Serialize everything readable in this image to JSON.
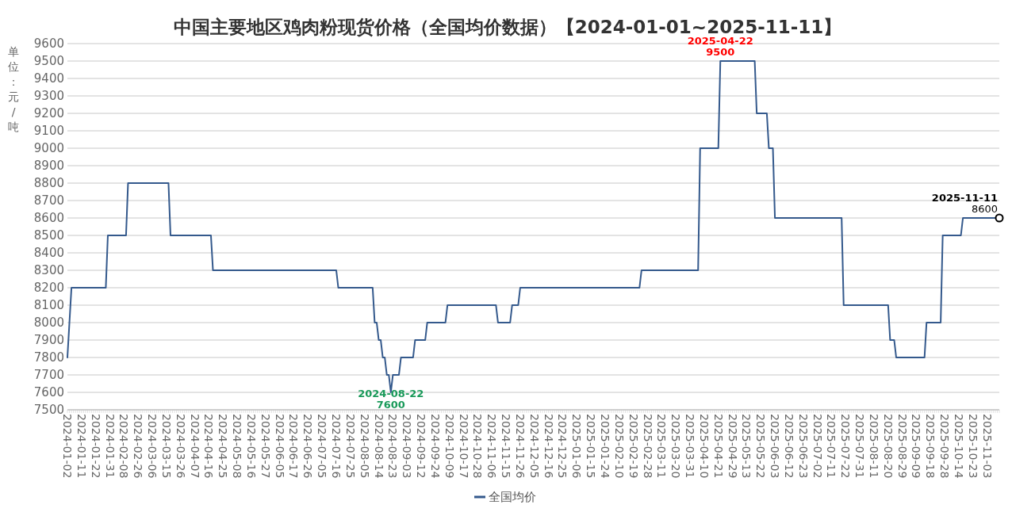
{
  "chart_data": {
    "type": "line",
    "title": "中国主要地区鸡肉粉现货价格（全国均价数据）【2024-01-01~2025-11-11】",
    "ylabel": "单位：元/吨",
    "categories": [
      "2024-01-02",
      null,
      null,
      null,
      null,
      null,
      null,
      "2024-01-11",
      null,
      null,
      null,
      null,
      null,
      null,
      "2024-01-22",
      null,
      null,
      null,
      null,
      null,
      null,
      "2024-01-31",
      null,
      null,
      null,
      null,
      null,
      null,
      "2024-02-08",
      null,
      null,
      null,
      null,
      null,
      null,
      "2024-02-26",
      null,
      null,
      null,
      null,
      null,
      null,
      "2024-03-06",
      null,
      null,
      null,
      null,
      null,
      null,
      "2024-03-15",
      null,
      null,
      null,
      null,
      null,
      null,
      "2024-03-26",
      null,
      null,
      null,
      null,
      null,
      null,
      "2024-04-07",
      null,
      null,
      null,
      null,
      null,
      null,
      "2024-04-16",
      null,
      null,
      null,
      null,
      null,
      null,
      "2024-04-25",
      null,
      null,
      null,
      null,
      null,
      null,
      "2024-05-08",
      null,
      null,
      null,
      null,
      null,
      null,
      "2024-05-16",
      null,
      null,
      null,
      null,
      null,
      null,
      "2024-05-27",
      null,
      null,
      null,
      null,
      null,
      null,
      "2024-06-05",
      null,
      null,
      null,
      null,
      null,
      null,
      "2024-06-17",
      null,
      null,
      null,
      null,
      null,
      null,
      "2024-06-26",
      null,
      null,
      null,
      null,
      null,
      null,
      "2024-07-05",
      null,
      null,
      null,
      null,
      null,
      null,
      "2024-07-16",
      null,
      null,
      null,
      null,
      null,
      null,
      "2024-07-25",
      null,
      null,
      null,
      null,
      null,
      null,
      "2024-08-05",
      null,
      null,
      null,
      null,
      null,
      null,
      "2024-08-14",
      null,
      null,
      null,
      null,
      null,
      null,
      "2024-08-23",
      null,
      null,
      null,
      null,
      null,
      null,
      "2024-09-03",
      null,
      null,
      null,
      null,
      null,
      null,
      "2024-09-12",
      null,
      null,
      null,
      null,
      null,
      null,
      "2024-09-24",
      null,
      null,
      null,
      null,
      null,
      null,
      "2024-10-09",
      null,
      null,
      null,
      null,
      null,
      null,
      "2024-10-17",
      null,
      null,
      null,
      null,
      null,
      null,
      "2024-10-28",
      null,
      null,
      null,
      null,
      null,
      null,
      "2024-11-06",
      null,
      null,
      null,
      null,
      null,
      null,
      "2024-11-15",
      null,
      null,
      null,
      null,
      null,
      null,
      "2024-11-26",
      null,
      null,
      null,
      null,
      null,
      null,
      "2024-12-05",
      null,
      null,
      null,
      null,
      null,
      null,
      "2024-12-16",
      null,
      null,
      null,
      null,
      null,
      null,
      "2024-12-25",
      null,
      null,
      null,
      null,
      null,
      null,
      "2025-01-06",
      null,
      null,
      null,
      null,
      null,
      null,
      "2025-01-15",
      null,
      null,
      null,
      null,
      null,
      null,
      "2025-01-24",
      null,
      null,
      null,
      null,
      null,
      null,
      "2025-02-10",
      null,
      null,
      null,
      null,
      null,
      null,
      "2025-02-19",
      null,
      null,
      null,
      null,
      null,
      null,
      "2025-02-28",
      null,
      null,
      null,
      null,
      null,
      null,
      "2025-03-11",
      null,
      null,
      null,
      null,
      null,
      null,
      "2025-03-20",
      null,
      null,
      null,
      null,
      null,
      null,
      "2025-03-31",
      null,
      null,
      null,
      null,
      null,
      null,
      "2025-04-10",
      null,
      null,
      null,
      null,
      null,
      null,
      "2025-04-21",
      null,
      null,
      null,
      null,
      null,
      null,
      "2025-04-29",
      null,
      null,
      null,
      null,
      null,
      null,
      "2025-05-13",
      null,
      null,
      null,
      null,
      null,
      null,
      "2025-05-22",
      null,
      null,
      null,
      null,
      null,
      null,
      "2025-06-03",
      null,
      null,
      null,
      null,
      null,
      null,
      "2025-06-12",
      null,
      null,
      null,
      null,
      null,
      null,
      "2025-06-23",
      null,
      null,
      null,
      null,
      null,
      null,
      "2025-07-02",
      null,
      null,
      null,
      null,
      null,
      null,
      "2025-07-11",
      null,
      null,
      null,
      null,
      null,
      null,
      "2025-07-22",
      null,
      null,
      null,
      null,
      null,
      null,
      "2025-07-31",
      null,
      null,
      null,
      null,
      null,
      null,
      "2025-08-11",
      null,
      null,
      null,
      null,
      null,
      null,
      "2025-08-20",
      null,
      null,
      null,
      null,
      null,
      null,
      "2025-08-29",
      null,
      null,
      null,
      null,
      null,
      null,
      "2025-09-09",
      null,
      null,
      null,
      null,
      null,
      null,
      "2025-09-18",
      null,
      null,
      null,
      null,
      null,
      null,
      "2025-09-28",
      null,
      null,
      null,
      null,
      null,
      null,
      "2025-10-14",
      null,
      null,
      null,
      null,
      null,
      null,
      "2025-10-23",
      null,
      null,
      null,
      null,
      null,
      null,
      "2025-11-03",
      null,
      null,
      null,
      null,
      null,
      null
    ],
    "series": [
      {
        "name": "全国均价",
        "color": "#34598c",
        "values": [
          7800,
          8000,
          8200,
          8200,
          8200,
          8200,
          8200,
          8200,
          8200,
          8200,
          8200,
          8200,
          8200,
          8200,
          8200,
          8200,
          8200,
          8200,
          8200,
          8200,
          8500,
          8500,
          8500,
          8500,
          8500,
          8500,
          8500,
          8500,
          8500,
          8500,
          8800,
          8800,
          8800,
          8800,
          8800,
          8800,
          8800,
          8800,
          8800,
          8800,
          8800,
          8800,
          8800,
          8800,
          8800,
          8800,
          8800,
          8800,
          8800,
          8800,
          8800,
          8500,
          8500,
          8500,
          8500,
          8500,
          8500,
          8500,
          8500,
          8500,
          8500,
          8500,
          8500,
          8500,
          8500,
          8500,
          8500,
          8500,
          8500,
          8500,
          8500,
          8500,
          8300,
          8300,
          8300,
          8300,
          8300,
          8300,
          8300,
          8300,
          8300,
          8300,
          8300,
          8300,
          8300,
          8300,
          8300,
          8300,
          8300,
          8300,
          8300,
          8300,
          8300,
          8300,
          8300,
          8300,
          8300,
          8300,
          8300,
          8300,
          8300,
          8300,
          8300,
          8300,
          8300,
          8300,
          8300,
          8300,
          8300,
          8300,
          8300,
          8300,
          8300,
          8300,
          8300,
          8300,
          8300,
          8300,
          8300,
          8300,
          8300,
          8300,
          8300,
          8300,
          8300,
          8300,
          8300,
          8300,
          8300,
          8300,
          8300,
          8300,
          8300,
          8300,
          8200,
          8200,
          8200,
          8200,
          8200,
          8200,
          8200,
          8200,
          8200,
          8200,
          8200,
          8200,
          8200,
          8200,
          8200,
          8200,
          8200,
          8200,
          8000,
          8000,
          7900,
          7900,
          7800,
          7800,
          7700,
          7700,
          7600,
          7700,
          7700,
          7700,
          7700,
          7800,
          7800,
          7800,
          7800,
          7800,
          7800,
          7800,
          7900,
          7900,
          7900,
          7900,
          7900,
          7900,
          8000,
          8000,
          8000,
          8000,
          8000,
          8000,
          8000,
          8000,
          8000,
          8000,
          8100,
          8100,
          8100,
          8100,
          8100,
          8100,
          8100,
          8100,
          8100,
          8100,
          8100,
          8100,
          8100,
          8100,
          8100,
          8100,
          8100,
          8100,
          8100,
          8100,
          8100,
          8100,
          8100,
          8100,
          8100,
          8000,
          8000,
          8000,
          8000,
          8000,
          8000,
          8000,
          8100,
          8100,
          8100,
          8100,
          8200,
          8200,
          8200,
          8200,
          8200,
          8200,
          8200,
          8200,
          8200,
          8200,
          8200,
          8200,
          8200,
          8200,
          8200,
          8200,
          8200,
          8200,
          8200,
          8200,
          8200,
          8200,
          8200,
          8200,
          8200,
          8200,
          8200,
          8200,
          8200,
          8200,
          8200,
          8200,
          8200,
          8200,
          8200,
          8200,
          8200,
          8200,
          8200,
          8200,
          8200,
          8200,
          8200,
          8200,
          8200,
          8200,
          8200,
          8200,
          8200,
          8200,
          8200,
          8200,
          8200,
          8200,
          8200,
          8200,
          8200,
          8200,
          8200,
          8200,
          8300,
          8300,
          8300,
          8300,
          8300,
          8300,
          8300,
          8300,
          8300,
          8300,
          8300,
          8300,
          8300,
          8300,
          8300,
          8300,
          8300,
          8300,
          8300,
          8300,
          8300,
          8300,
          8300,
          8300,
          8300,
          8300,
          8300,
          8300,
          8300,
          9000,
          9000,
          9000,
          9000,
          9000,
          9000,
          9000,
          9000,
          9000,
          9000,
          9500,
          9500,
          9500,
          9500,
          9500,
          9500,
          9500,
          9500,
          9500,
          9500,
          9500,
          9500,
          9500,
          9500,
          9500,
          9500,
          9500,
          9500,
          9200,
          9200,
          9200,
          9200,
          9200,
          9200,
          9000,
          9000,
          9000,
          8600,
          8600,
          8600,
          8600,
          8600,
          8600,
          8600,
          8600,
          8600,
          8600,
          8600,
          8600,
          8600,
          8600,
          8600,
          8600,
          8600,
          8600,
          8600,
          8600,
          8600,
          8600,
          8600,
          8600,
          8600,
          8600,
          8600,
          8600,
          8600,
          8600,
          8600,
          8600,
          8600,
          8600,
          8100,
          8100,
          8100,
          8100,
          8100,
          8100,
          8100,
          8100,
          8100,
          8100,
          8100,
          8100,
          8100,
          8100,
          8100,
          8100,
          8100,
          8100,
          8100,
          8100,
          8100,
          8100,
          8100,
          7900,
          7900,
          7900,
          7800,
          7800,
          7800,
          7800,
          7800,
          7800,
          7800,
          7800,
          7800,
          7800,
          7800,
          7800,
          7800,
          7800,
          7800,
          8000,
          8000,
          8000,
          8000,
          8000,
          8000,
          8000,
          8000,
          8500,
          8500,
          8500,
          8500,
          8500,
          8500,
          8500,
          8500,
          8500,
          8500,
          8600,
          8600,
          8600,
          8600,
          8600,
          8600,
          8600,
          8600,
          8600,
          8600,
          8600,
          8600,
          8600,
          8600,
          8600,
          8600,
          8600,
          8600,
          8600
        ],
        "value_labels": [
          null,
          null,
          null,
          null,
          null,
          null,
          null,
          null,
          null,
          null,
          null,
          null,
          null,
          null,
          null,
          null,
          null,
          null,
          null,
          null,
          null,
          null,
          null,
          null,
          null,
          null,
          null,
          null,
          null,
          null,
          null,
          null,
          null,
          null,
          null,
          null,
          null,
          null,
          null,
          null,
          null,
          null,
          null,
          null,
          null,
          null,
          null,
          null,
          null,
          null,
          null,
          null,
          null,
          null,
          null,
          null,
          null,
          null,
          null,
          null,
          null,
          null,
          null,
          null,
          null,
          null,
          null,
          null,
          null,
          null,
          null,
          null,
          null,
          null,
          null,
          null,
          null,
          null,
          null,
          null,
          null,
          null,
          null,
          null,
          null,
          null,
          null,
          null,
          null,
          null,
          null,
          null,
          null,
          null,
          null,
          null,
          null,
          null,
          null,
          null,
          null,
          null,
          null,
          null,
          null,
          null,
          null,
          null,
          null,
          null,
          null,
          null,
          null,
          null,
          null,
          null,
          null,
          null,
          null,
          null,
          null,
          null,
          null,
          null,
          null,
          null,
          null,
          null,
          null,
          null,
          null,
          null,
          null,
          null,
          null,
          null,
          null,
          null,
          null,
          null,
          null,
          null,
          null,
          null,
          null,
          null,
          null,
          null,
          null,
          null,
          null,
          null,
          null,
          null,
          null,
          null,
          null,
          null,
          null,
          null,
          "2024-08-22\n7600",
          null,
          null,
          null,
          null,
          null,
          null,
          null,
          null,
          null,
          null,
          null,
          null,
          null,
          null,
          null,
          null,
          null,
          null,
          null,
          null,
          null,
          null,
          null,
          null,
          null,
          null,
          null,
          null,
          null,
          null,
          null,
          null,
          null,
          null,
          null,
          null,
          null,
          null,
          null,
          null,
          null,
          null,
          null,
          null,
          null,
          null,
          null,
          null,
          null,
          null,
          null,
          null,
          null,
          null,
          null,
          null,
          null,
          null,
          null,
          null,
          null,
          null,
          null,
          null,
          null,
          null,
          null,
          null,
          null,
          null,
          null,
          null,
          null,
          null,
          null,
          null,
          null,
          null,
          null,
          null,
          null,
          null,
          null,
          null,
          null,
          null,
          null,
          null,
          null,
          null,
          null,
          null,
          null,
          null,
          null,
          null,
          null,
          null,
          null,
          null,
          null,
          null,
          null,
          null,
          null,
          null,
          null,
          null,
          null,
          null,
          null,
          null,
          null,
          null,
          null,
          null,
          null,
          null,
          null,
          null,
          null,
          null,
          null,
          null,
          null,
          null,
          null,
          null,
          null,
          null,
          null,
          null,
          null,
          null,
          null,
          null,
          null,
          null,
          null,
          null,
          null,
          null,
          null,
          null,
          null,
          null,
          null,
          null,
          null,
          null,
          null,
          null,
          null,
          null,
          null,
          null,
          null,
          null,
          null,
          null,
          null,
          null,
          "2025-04-22\n9500",
          null,
          null,
          null,
          null,
          null,
          null,
          null,
          null,
          null,
          null,
          null,
          null,
          null,
          null,
          null,
          null,
          null,
          null,
          null,
          null,
          null,
          null,
          null,
          null,
          null,
          null,
          null,
          null,
          null,
          null,
          null,
          null,
          null,
          null,
          null,
          null,
          null,
          null,
          null,
          null,
          null,
          null,
          null,
          null,
          null,
          null,
          null,
          null,
          null,
          null,
          null,
          null,
          null,
          null,
          null,
          null,
          null,
          null,
          null,
          null,
          null,
          null,
          null,
          null,
          null,
          null,
          null,
          null,
          null,
          null,
          null,
          null,
          null,
          null,
          null,
          null,
          null,
          null,
          null,
          null,
          null,
          null,
          null,
          null,
          null,
          null,
          null,
          null,
          null,
          null,
          null,
          null,
          null,
          null,
          null,
          null,
          null,
          null,
          null,
          null,
          null,
          null,
          null,
          null,
          null,
          null,
          null,
          null,
          null,
          null,
          null,
          null,
          null,
          null,
          null,
          null,
          null,
          null,
          null,
          null,
          null,
          null,
          null,
          null,
          null,
          null,
          null,
          null,
          null,
          null,
          null,
          null,
          null,
          null,
          null,
          null,
          null,
          "2025-11-11\n8600"
        ]
      }
    ],
    "ylim": [
      7500,
      9600
    ],
    "yticks": [
      7500,
      7600,
      7700,
      7800,
      7900,
      8000,
      8100,
      8200,
      8300,
      8400,
      8500,
      8600,
      8700,
      8800,
      8900,
      9000,
      9100,
      9200,
      9300,
      9400,
      9500,
      9600
    ],
    "grid": "y",
    "legend": "bottom"
  }
}
